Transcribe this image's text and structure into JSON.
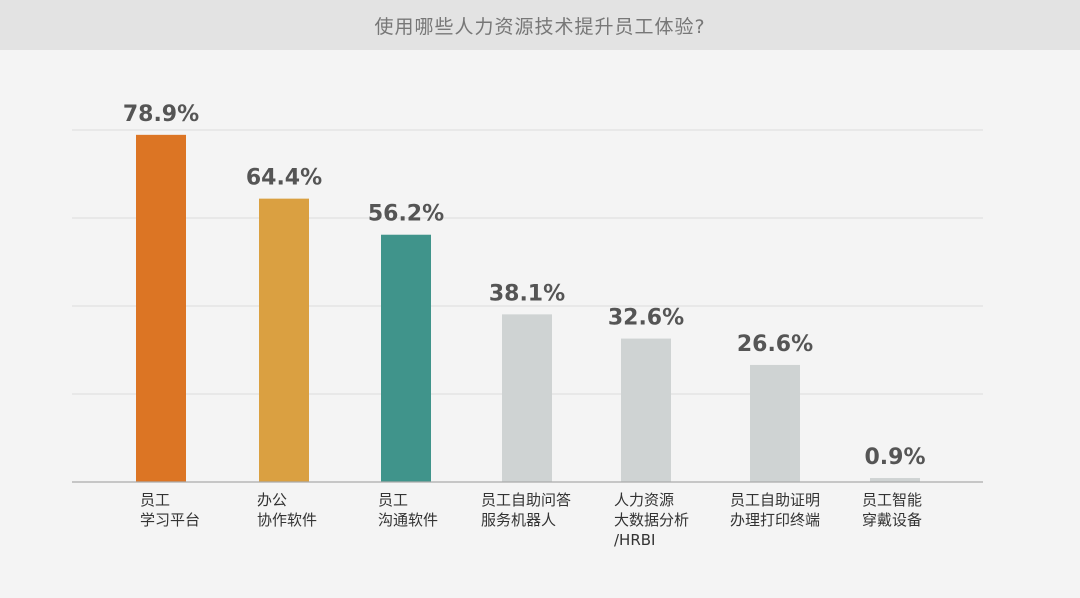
{
  "chart_data": {
    "type": "bar",
    "title": "使用哪些人力资源技术提升员工体验?",
    "categories": [
      "员工\n学习平台",
      "办公\n协作软件",
      "员工\n沟通软件",
      "员工自助问答\n服务机器人",
      "人力资源\n大数据分析\n/HRBI",
      "员工自助证明\n办理打印终端",
      "员工智能\n穿戴设备"
    ],
    "values": [
      78.9,
      64.4,
      56.2,
      38.1,
      32.6,
      26.6,
      0.9
    ],
    "value_labels": [
      "78.9%",
      "64.4%",
      "56.2%",
      "38.1%",
      "32.6%",
      "26.6%",
      "0.9%"
    ],
    "bar_colors": [
      "#dc7524",
      "#daa041",
      "#40948b",
      "#cfd3d3",
      "#cfd3d3",
      "#cfd3d3",
      "#cfd3d3"
    ],
    "ylim": [
      0,
      80
    ],
    "grid": true,
    "legend": "none"
  }
}
